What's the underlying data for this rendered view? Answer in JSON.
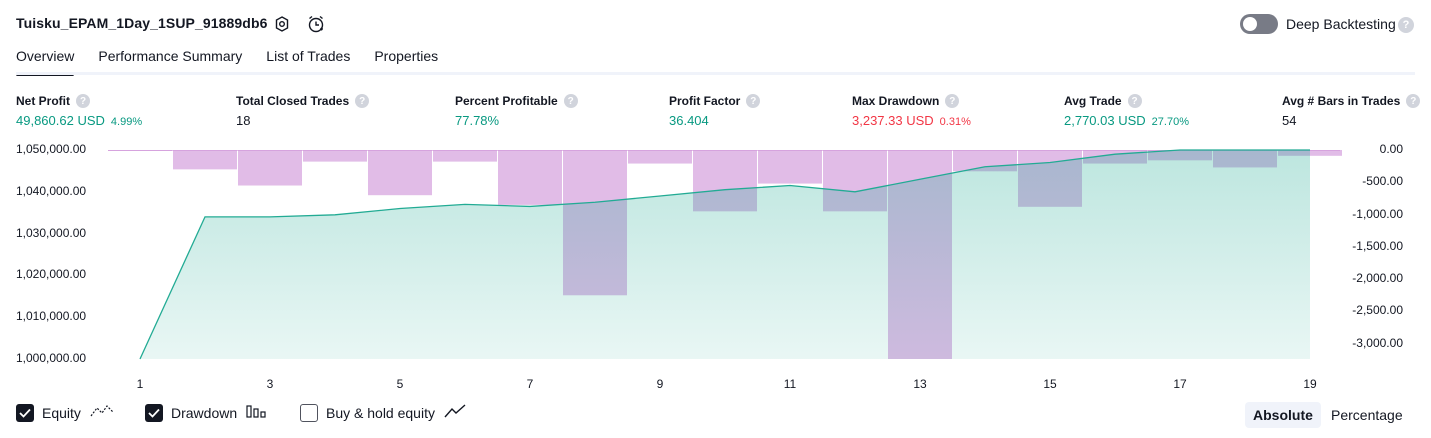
{
  "header": {
    "title": "Tuisku_EPAM_1Day_1SUP_91889db6",
    "deep_backtesting_label": "Deep Backtesting",
    "help_glyph": "?"
  },
  "tabs": [
    {
      "label": "Overview",
      "active": true
    },
    {
      "label": "Performance Summary",
      "active": false
    },
    {
      "label": "List of Trades",
      "active": false
    },
    {
      "label": "Properties",
      "active": false
    }
  ],
  "metrics": [
    {
      "label": "Net Profit",
      "value": "49,860.62 USD",
      "sub": "4.99%",
      "color": "#089981"
    },
    {
      "label": "Total Closed Trades",
      "value": "18",
      "sub": "",
      "color": "#131722"
    },
    {
      "label": "Percent Profitable",
      "value": "77.78%",
      "sub": "",
      "color": "#089981"
    },
    {
      "label": "Profit Factor",
      "value": "36.404",
      "sub": "",
      "color": "#089981"
    },
    {
      "label": "Max Drawdown",
      "value": "3,237.33 USD",
      "sub": "0.31%",
      "color": "#f23645"
    },
    {
      "label": "Avg Trade",
      "value": "2,770.03 USD",
      "sub": "27.70%",
      "color": "#089981"
    },
    {
      "label": "Avg # Bars in Trades",
      "value": "54",
      "sub": "",
      "color": "#131722"
    }
  ],
  "chart_data": {
    "type": "area",
    "x_ticks": [
      "1",
      "3",
      "5",
      "7",
      "9",
      "11",
      "13",
      "15",
      "17",
      "19"
    ],
    "left_axis_ticks": [
      "1,050,000.00",
      "1,040,000.00",
      "1,030,000.00",
      "1,020,000.00",
      "1,010,000.00",
      "1,000,000.00"
    ],
    "right_axis_ticks": [
      "0.00",
      "-500.00",
      "-1,000.00",
      "-1,500.00",
      "-2,000.00",
      "-2,500.00",
      "-3,000.00"
    ],
    "ylim_left": [
      1000000,
      1050000
    ],
    "ylim_right": [
      -3237,
      0
    ],
    "series": [
      {
        "name": "Equity",
        "type": "area",
        "color": "#22ab94",
        "x": [
          1,
          2,
          3,
          4,
          5,
          6,
          7,
          8,
          9,
          10,
          11,
          12,
          13,
          14,
          15,
          16,
          17,
          18,
          19
        ],
        "values": [
          1000000,
          1034000,
          1034000,
          1034500,
          1036000,
          1037000,
          1036500,
          1037500,
          1039000,
          1040500,
          1041500,
          1040000,
          1043000,
          1046000,
          1047000,
          1049000,
          1050000,
          1050500,
          1050500
        ]
      },
      {
        "name": "Drawdown",
        "type": "bar",
        "color": "#ce93d8",
        "x": [
          1,
          2,
          3,
          4,
          5,
          6,
          7,
          8,
          9,
          10,
          11,
          12,
          13,
          14,
          15,
          16,
          17,
          18,
          19
        ],
        "values": [
          -10,
          -300,
          -550,
          -180,
          -700,
          -180,
          -850,
          -2250,
          -210,
          -950,
          -520,
          -950,
          -3237,
          -330,
          -880,
          -210,
          -160,
          -270,
          -90
        ]
      }
    ],
    "grid": false
  },
  "legend": [
    {
      "label": "Equity",
      "checked": true
    },
    {
      "label": "Drawdown",
      "checked": true
    },
    {
      "label": "Buy & hold equity",
      "checked": false
    }
  ],
  "scale_toggle": {
    "options": [
      "Absolute",
      "Percentage"
    ],
    "active": "Absolute"
  }
}
